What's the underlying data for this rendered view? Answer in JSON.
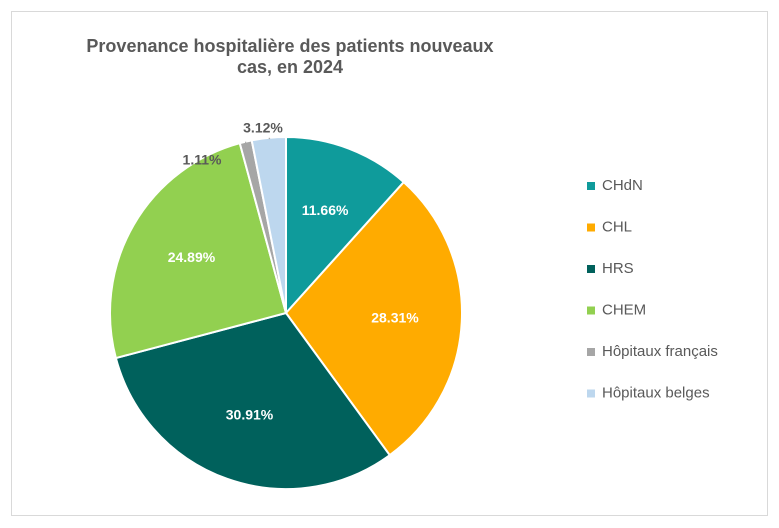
{
  "chart_data": {
    "type": "pie",
    "title": "Provenance hospitalière des patients nouveaux cas, en 2024",
    "categories": [
      "CHdN",
      "CHL",
      "HRS",
      "CHEM",
      "Hôpitaux français",
      "Hôpitaux belges"
    ],
    "values": [
      11.66,
      28.31,
      30.91,
      24.89,
      1.11,
      3.12
    ],
    "value_labels": [
      "11.66%",
      "28.31%",
      "30.91%",
      "24.89%",
      "1.11%",
      "3.12%"
    ],
    "colors": [
      "#0f9b9b",
      "#ffab00",
      "#00615c",
      "#92d050",
      "#a6a6a6",
      "#bdd7ee"
    ],
    "legend": "right"
  }
}
